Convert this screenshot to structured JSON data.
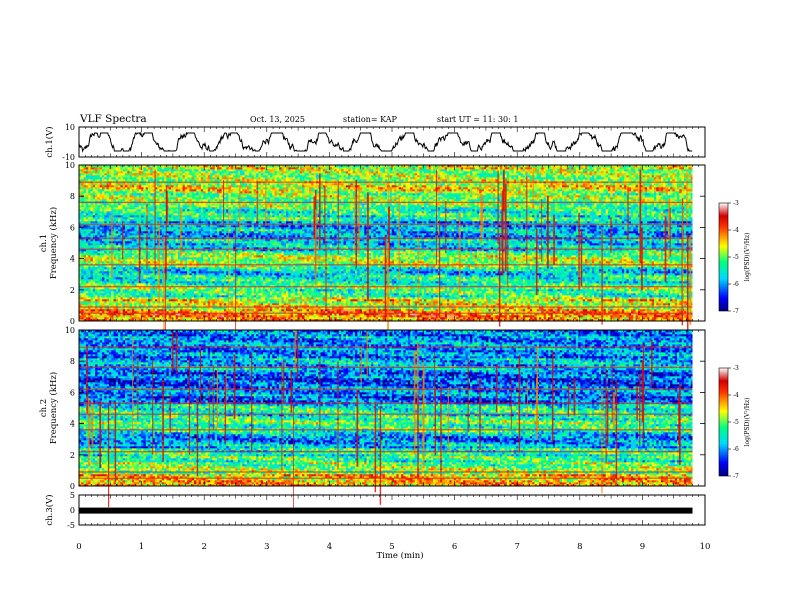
{
  "header": {
    "title": "VLF Spectra",
    "date": "Oct. 13, 2025",
    "station": "station= KAP",
    "start": "start  UT  =   11: 30: 1"
  },
  "chart_data": [
    {
      "type": "line",
      "id": "ch1-waveform",
      "ylabel": "ch.1(V)",
      "ylim": [
        -10,
        10
      ],
      "yticks": [
        "10",
        "-10"
      ],
      "x_range_min": [
        0,
        9.8
      ],
      "line_color": "#000000",
      "description_values": "noisy waveform oscillating roughly between -5 and 5 V around 0"
    },
    {
      "type": "heatmap",
      "id": "ch1-spectrogram",
      "ylabel_top": "ch.1",
      "ylabel": "Frequency (kHz)",
      "ylim": [
        0,
        10
      ],
      "yticks": [
        "0",
        "2",
        "4",
        "6",
        "8",
        "10"
      ],
      "x_range_min": [
        0,
        9.8
      ],
      "colorbar": {
        "label": "log(PSD)(V²/Hz)",
        "range": [
          -7,
          -3
        ],
        "ticks": [
          "-3",
          "-4",
          "-5",
          "-6",
          "-7"
        ]
      },
      "band_levels": [
        {
          "f": [
            0,
            0.8
          ],
          "level": -4.0
        },
        {
          "f": [
            0.8,
            1.6
          ],
          "level": -4.6
        },
        {
          "f": [
            1.6,
            2.5
          ],
          "level": -5.2
        },
        {
          "f": [
            2.5,
            3.5
          ],
          "level": -5.6
        },
        {
          "f": [
            3.5,
            4.5
          ],
          "level": -5.0
        },
        {
          "f": [
            4.5,
            5.3
          ],
          "level": -5.7
        },
        {
          "f": [
            5.3,
            6.4
          ],
          "level": -5.9
        },
        {
          "f": [
            6.4,
            7.3
          ],
          "level": -5.3
        },
        {
          "f": [
            7.3,
            8.2
          ],
          "level": -5.1
        },
        {
          "f": [
            8.2,
            10
          ],
          "level": -4.7
        }
      ]
    },
    {
      "type": "heatmap",
      "id": "ch2-spectrogram",
      "ylabel_top": "ch.2",
      "ylabel": "Frequency (kHz)",
      "ylim": [
        0,
        10
      ],
      "yticks": [
        "0",
        "2",
        "4",
        "6",
        "8",
        "10"
      ],
      "x_range_min": [
        0,
        9.8
      ],
      "colorbar": {
        "label": "log(PSD)(V²/Hz)",
        "range": [
          -7,
          -3
        ],
        "ticks": [
          "-3",
          "-4",
          "-5",
          "-6",
          "-7"
        ]
      },
      "band_levels": [
        {
          "f": [
            0,
            0.8
          ],
          "level": -4.4
        },
        {
          "f": [
            0.8,
            1.6
          ],
          "level": -5.0
        },
        {
          "f": [
            1.6,
            2.5
          ],
          "level": -5.3
        },
        {
          "f": [
            2.5,
            3.5
          ],
          "level": -5.9
        },
        {
          "f": [
            3.5,
            4.5
          ],
          "level": -5.2
        },
        {
          "f": [
            4.5,
            5.3
          ],
          "level": -5.5
        },
        {
          "f": [
            5.3,
            6.4
          ],
          "level": -6.1
        },
        {
          "f": [
            6.4,
            7.3
          ],
          "level": -6.3
        },
        {
          "f": [
            7.3,
            8.2
          ],
          "level": -5.8
        },
        {
          "f": [
            8.2,
            10
          ],
          "level": -6.0
        }
      ]
    },
    {
      "type": "line",
      "id": "ch3-waveform",
      "ylabel": "ch.3(V)",
      "ylim": [
        -5,
        5
      ],
      "yticks": [
        "5",
        "0",
        "-5"
      ],
      "x_range_min": [
        0,
        9.8
      ],
      "constant_value": -0.2,
      "line_color": "#000000"
    }
  ],
  "xaxis": {
    "label": "Time  (min)",
    "range": [
      0,
      10
    ],
    "ticks": [
      "0",
      "1",
      "2",
      "3",
      "4",
      "5",
      "6",
      "7",
      "8",
      "9",
      "10"
    ]
  }
}
